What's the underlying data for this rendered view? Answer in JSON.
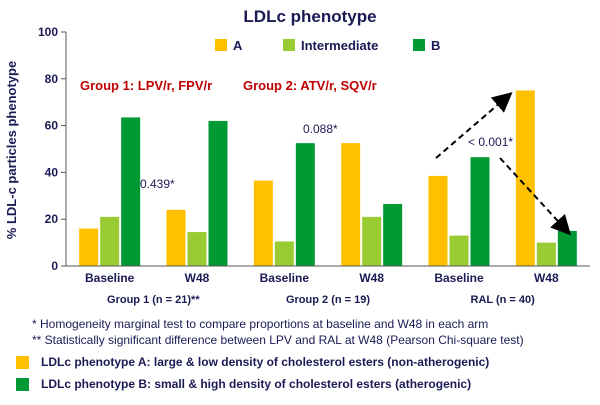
{
  "chart_data": {
    "type": "bar",
    "title": "LDLc phenotype",
    "ylabel": "% LDL-c particles phenotype",
    "xlabel": "",
    "ylim": [
      0,
      100
    ],
    "yticks": [
      0,
      20,
      40,
      60,
      80,
      100
    ],
    "grid": false,
    "legend_position": "top",
    "categories": [
      "Baseline",
      "W48",
      "Baseline",
      "W48",
      "Baseline",
      "W48"
    ],
    "groups": [
      {
        "label": "Group 1 (n = 21)**",
        "headline": "Group 1: LPV/r, FPV/r"
      },
      {
        "label": "Group 2 (n = 19)",
        "headline": "Group 2: ATV/r, SQV/r"
      },
      {
        "label": "RAL (n = 40)",
        "headline": ""
      }
    ],
    "series": [
      {
        "name": "A",
        "color": "#FFC000",
        "values": [
          16,
          24,
          36.5,
          52.5,
          38.5,
          75
        ]
      },
      {
        "name": "Intermediate",
        "color": "#99CC33",
        "values": [
          21,
          14.5,
          10.5,
          21,
          13,
          10
        ]
      },
      {
        "name": "B",
        "color": "#009933",
        "values": [
          63.5,
          62,
          52.5,
          26.5,
          46.5,
          15
        ]
      }
    ],
    "annotations": [
      "0.439*",
      "0.088*",
      "< 0.001*"
    ]
  },
  "footnotes": [
    "* Homogeneity marginal test to compare proportions at baseline and W48 in each arm",
    "** Statistically significant difference  between LPV and RAL at W48 (Pearson Chi-square test)"
  ],
  "legend_notes": [
    {
      "text": "LDLc phenotype A: large & low density of cholesterol esters (non-atherogenic)",
      "color": "#FFC000"
    },
    {
      "text": "LDLc phenotype B: small & high density of cholesterol esters (atherogenic)",
      "color": "#009933"
    }
  ],
  "colors": {
    "text_dark": "#1a1a55",
    "headline": "#C00000"
  }
}
